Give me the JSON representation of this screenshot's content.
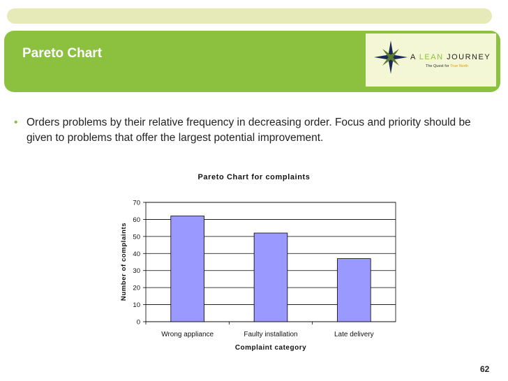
{
  "slide": {
    "title": "Pareto Chart",
    "bullet": "Orders problems by their relative frequency in decreasing order.  Focus and priority should be given to problems that offer the largest potential improvement.",
    "page_number": "62"
  },
  "logo": {
    "prefix": "A ",
    "highlight": "LEAN",
    "suffix": " JOURNEY",
    "tagline_start": "The Quest for ",
    "tagline_highlight": "True North",
    "icon": "compass-star-icon"
  },
  "colors": {
    "header_green": "#8cc13f",
    "top_strip": "#e6eab8",
    "bar_fill": "#9999ff"
  },
  "chart_data": {
    "type": "bar",
    "title": "Pareto Chart for complaints",
    "xlabel": "Complaint category",
    "ylabel": "Number of complaints",
    "categories": [
      "Wrong appliance",
      "Faulty installation",
      "Late delivery"
    ],
    "values": [
      62,
      52,
      37
    ],
    "ylim": [
      0,
      70
    ],
    "yticks": [
      0,
      10,
      20,
      30,
      40,
      50,
      60,
      70
    ],
    "grid": true,
    "legend": "none"
  }
}
